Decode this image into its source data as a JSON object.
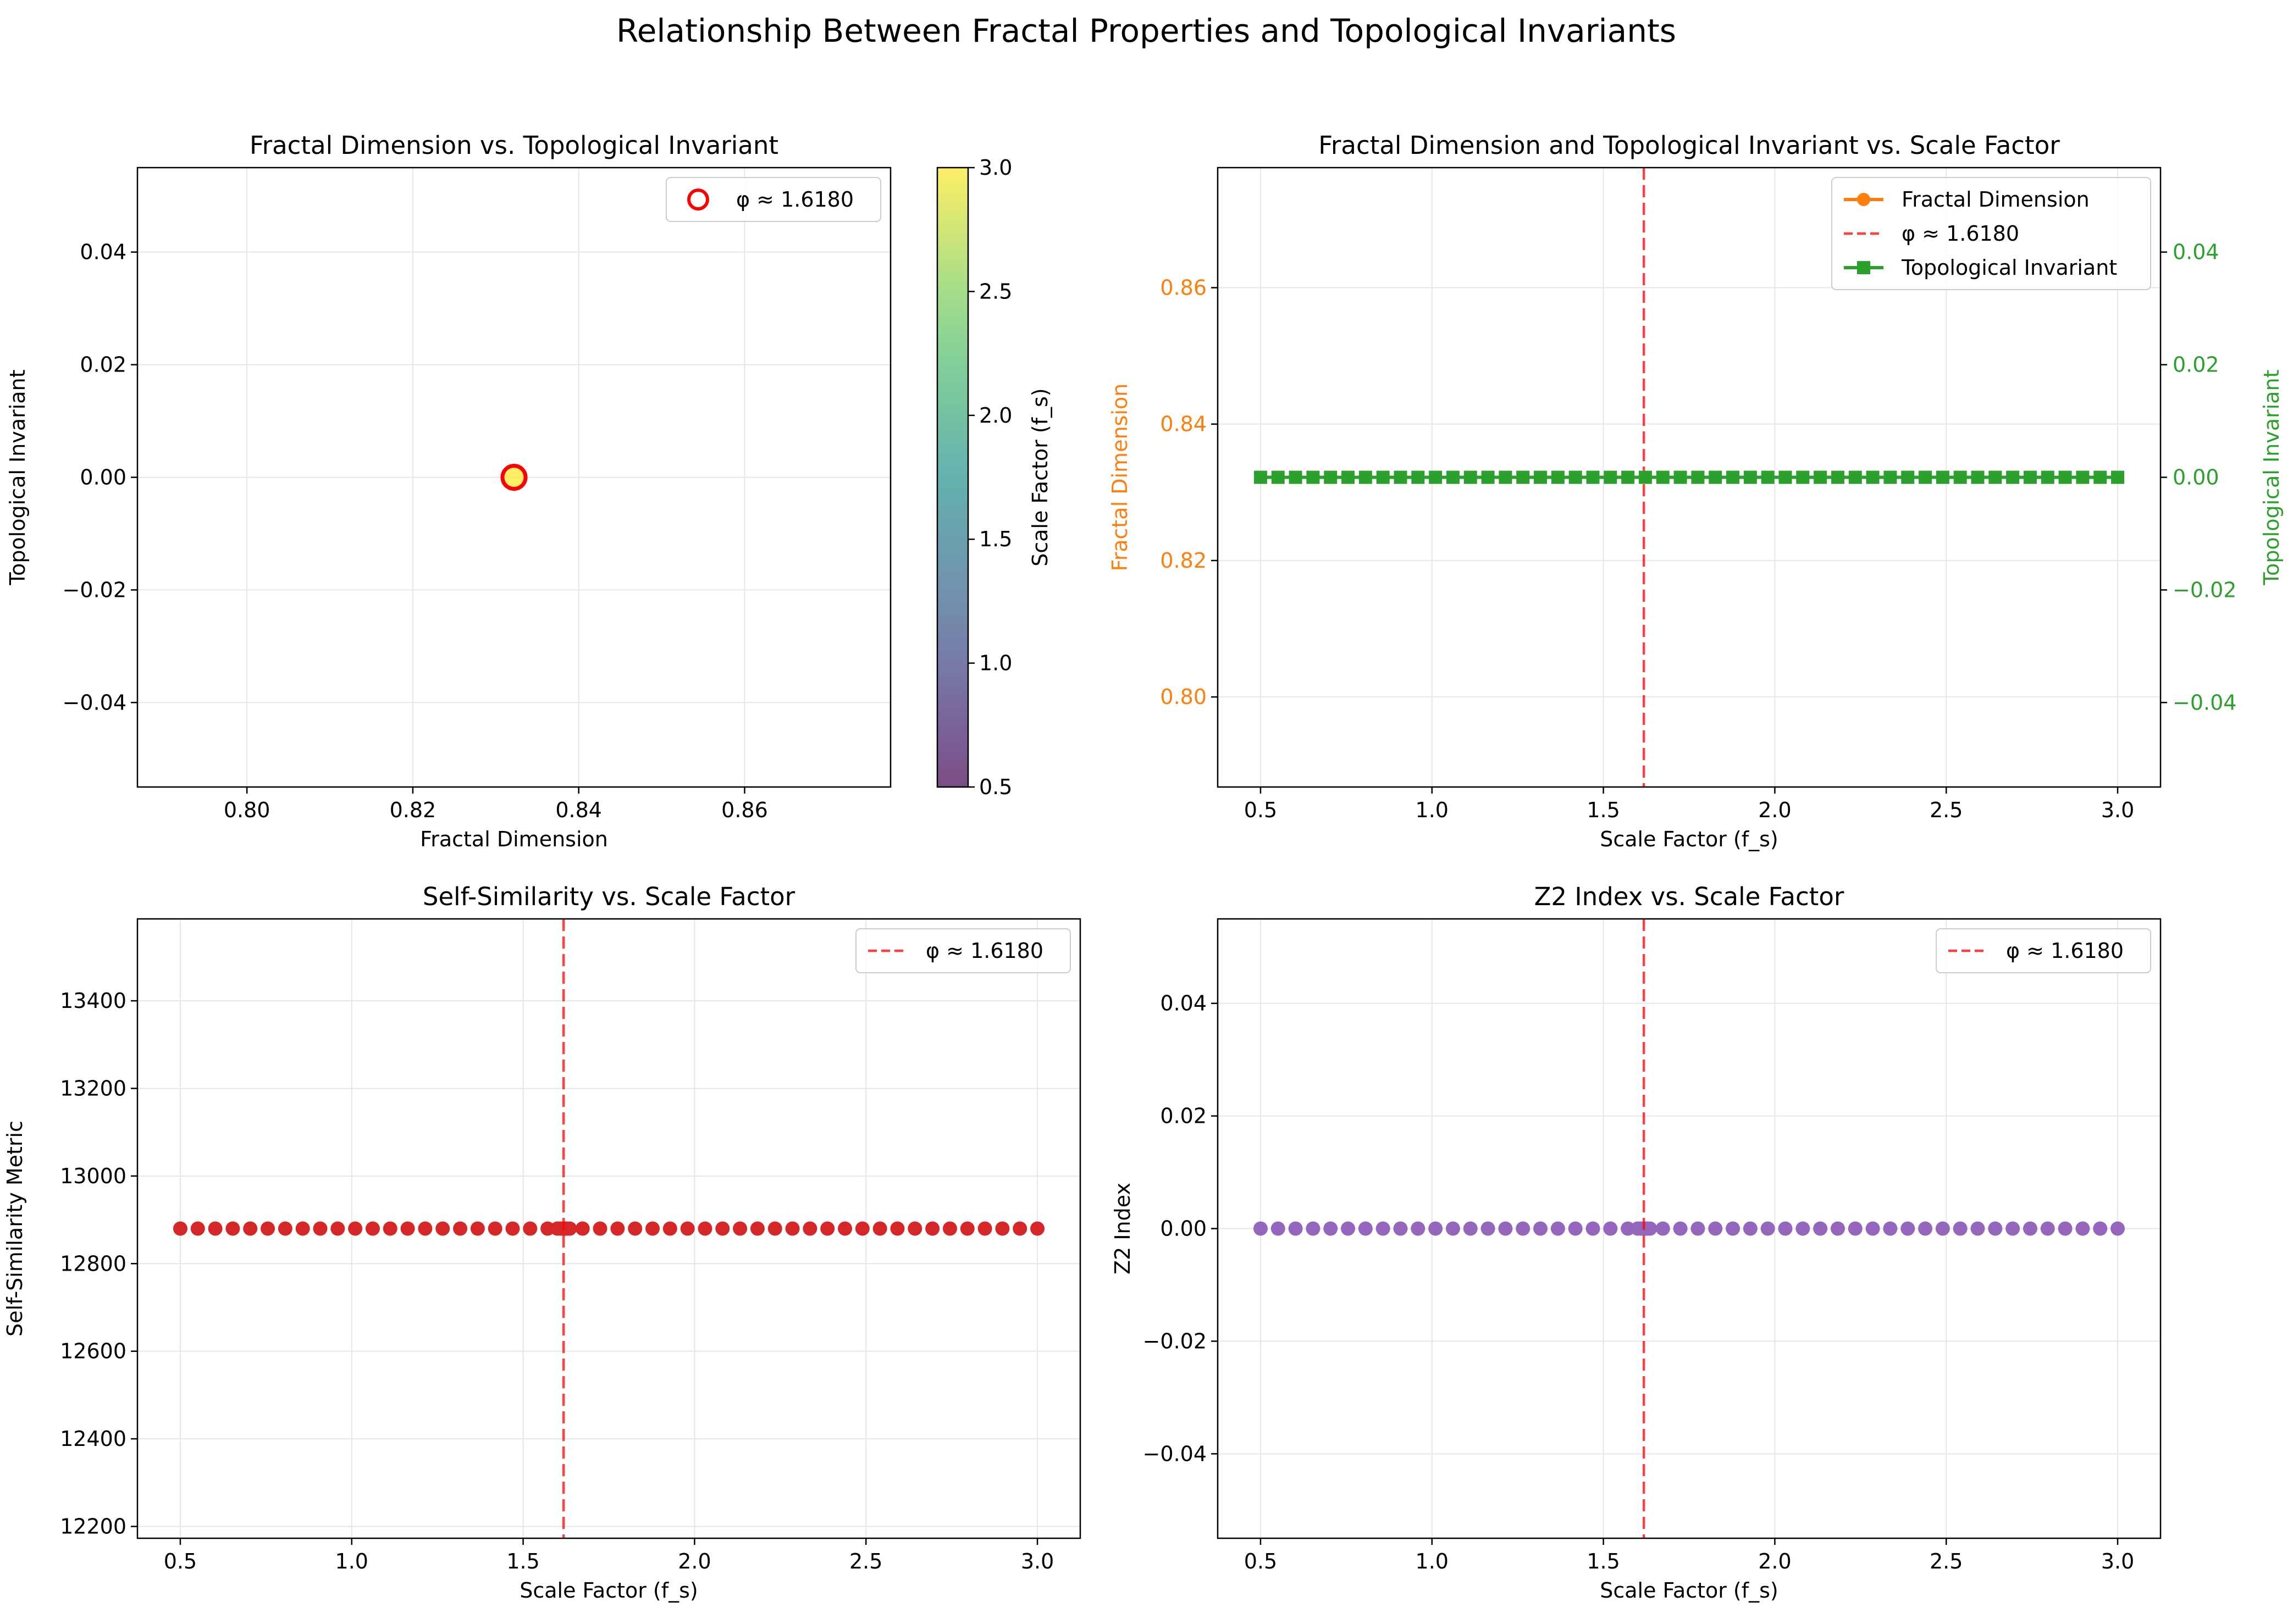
{
  "figure": {
    "suptitle": "Relationship Between Fractal Properties and Topological Invariants"
  },
  "colors": {
    "fractal": "#ff7f0e",
    "topological": "#2ca02c",
    "phi_line": "#ff0000",
    "self_similarity": "#d62728",
    "z2": "#9467bd",
    "grid": "#e6e6e6",
    "axis": "#000000"
  },
  "chart_data": [
    {
      "type": "scatter",
      "title": "Fractal Dimension vs. Topological Invariant",
      "xlabel": "Fractal Dimension",
      "ylabel": "Topological Invariant",
      "xlim": [
        0.7868,
        0.8776
      ],
      "ylim": [
        -0.055,
        0.055
      ],
      "xticks": [
        "0.80",
        "0.82",
        "0.84",
        "0.86"
      ],
      "xtick_values": [
        0.8,
        0.82,
        0.84,
        0.86
      ],
      "yticks": [
        "0.04",
        "0.02",
        "0.00",
        "−0.02",
        "−0.04"
      ],
      "ytick_values": [
        0.04,
        0.02,
        0.0,
        -0.02,
        -0.04
      ],
      "points": [
        {
          "x": 0.8322,
          "y": 0.0,
          "color_value": 3.0
        }
      ],
      "highlight": {
        "label": "φ ≈ 1.6180",
        "x": 0.8322,
        "y": 0.0,
        "edge_color": "#ff0000"
      },
      "legend": {
        "entries": [
          "φ ≈ 1.6180"
        ],
        "position": "top-right"
      },
      "colorbar": {
        "label": "Scale Factor (f_s)",
        "range": [
          0.5,
          3.0
        ],
        "ticks": [
          "3.0",
          "2.5",
          "2.0",
          "1.5",
          "1.0",
          "0.5"
        ],
        "tick_values": [
          3.0,
          2.5,
          2.0,
          1.5,
          1.0,
          0.5
        ],
        "colormap": "viridis",
        "alpha": 0.7
      },
      "grid": true
    },
    {
      "type": "line",
      "title": "Fractal Dimension and Topological Invariant vs. Scale Factor",
      "xlabel": "Scale Factor (f_s)",
      "ylabel": "Fractal Dimension",
      "ylabel_right": "Topological Invariant",
      "xlim": [
        0.375,
        3.125
      ],
      "ylim": [
        0.7868,
        0.8776
      ],
      "ylim_right": [
        -0.055,
        0.055
      ],
      "xticks": [
        "0.5",
        "1.0",
        "1.5",
        "2.0",
        "2.5",
        "3.0"
      ],
      "xtick_values": [
        0.5,
        1.0,
        1.5,
        2.0,
        2.5,
        3.0
      ],
      "yticks": [
        "0.86",
        "0.84",
        "0.82",
        "0.80"
      ],
      "ytick_values": [
        0.86,
        0.84,
        0.82,
        0.8
      ],
      "yticks_right": [
        "0.04",
        "0.02",
        "0.00",
        "−0.02",
        "−0.04"
      ],
      "ytick_values_right": [
        0.04,
        0.02,
        0.0,
        -0.02,
        -0.04
      ],
      "x_range": [
        0.5,
        3.0
      ],
      "n_points": 50,
      "series": [
        {
          "name": "Fractal Dimension",
          "constant_value": 0.8322,
          "axis": "left",
          "marker": "circle"
        },
        {
          "name": "Topological Invariant",
          "constant_value": 0.0,
          "axis": "right",
          "marker": "square"
        }
      ],
      "vline": {
        "x": 1.618,
        "label": "φ ≈ 1.6180"
      },
      "legend": {
        "entries": [
          "Fractal Dimension",
          "φ ≈ 1.6180",
          "Topological Invariant"
        ],
        "position": "top-right"
      },
      "grid": true
    },
    {
      "type": "line",
      "title": "Self-Similarity vs. Scale Factor",
      "xlabel": "Scale Factor (f_s)",
      "ylabel": "Self-Similarity Metric",
      "xlim": [
        0.375,
        3.125
      ],
      "ylim": [
        12173,
        13587
      ],
      "xticks": [
        "0.5",
        "1.0",
        "1.5",
        "2.0",
        "2.5",
        "3.0"
      ],
      "xtick_values": [
        0.5,
        1.0,
        1.5,
        2.0,
        2.5,
        3.0
      ],
      "yticks": [
        "13400",
        "13200",
        "13000",
        "12800",
        "12600",
        "12400",
        "12200"
      ],
      "ytick_values": [
        13400,
        13200,
        13000,
        12800,
        12600,
        12400,
        12200
      ],
      "x_range": [
        0.5,
        3.0
      ],
      "n_points": 50,
      "series": [
        {
          "constant_value": 12880,
          "marker": "circle"
        }
      ],
      "extra_points": [
        {
          "x": 1.618,
          "y": 12880
        }
      ],
      "vline": {
        "x": 1.618,
        "label": "φ ≈ 1.6180"
      },
      "legend": {
        "entries": [
          "φ ≈ 1.6180"
        ],
        "position": "top-right"
      },
      "grid": true
    },
    {
      "type": "line",
      "title": "Z2 Index vs. Scale Factor",
      "xlabel": "Scale Factor (f_s)",
      "ylabel": "Z2 Index",
      "xlim": [
        0.375,
        3.125
      ],
      "ylim": [
        -0.055,
        0.055
      ],
      "xticks": [
        "0.5",
        "1.0",
        "1.5",
        "2.0",
        "2.5",
        "3.0"
      ],
      "xtick_values": [
        0.5,
        1.0,
        1.5,
        2.0,
        2.5,
        3.0
      ],
      "yticks": [
        "0.04",
        "0.02",
        "0.00",
        "−0.02",
        "−0.04"
      ],
      "ytick_values": [
        0.04,
        0.02,
        0.0,
        -0.02,
        -0.04
      ],
      "x_range": [
        0.5,
        3.0
      ],
      "n_points": 50,
      "series": [
        {
          "constant_value": 0.0,
          "marker": "circle"
        }
      ],
      "extra_points": [
        {
          "x": 1.618,
          "y": 0.0
        }
      ],
      "vline": {
        "x": 1.618,
        "label": "φ ≈ 1.6180"
      },
      "legend": {
        "entries": [
          "φ ≈ 1.6180"
        ],
        "position": "top-right"
      },
      "grid": true
    }
  ]
}
